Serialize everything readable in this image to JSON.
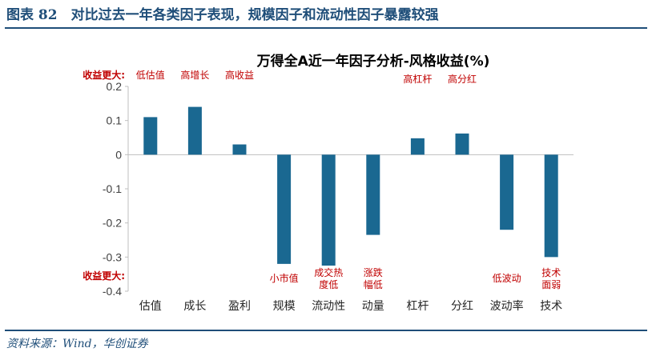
{
  "figure_title": "图表 82　对比过去一年各类因子表现，规模因子和流动性因子暴露较强",
  "source": "资料来源：Wind，华创证券",
  "colors": {
    "bar": "#1a6891",
    "annotation": "#c00000",
    "header": "#1f4e79",
    "axis": "#bfbfbf"
  },
  "chart_data": {
    "type": "bar",
    "title": "万得全A近一年因子分析-风格收益(%)",
    "categories": [
      "估值",
      "成长",
      "盈利",
      "规模",
      "流动性",
      "动量",
      "杠杆",
      "分红",
      "波动率",
      "技术"
    ],
    "values": [
      0.11,
      0.14,
      0.03,
      -0.32,
      -0.325,
      -0.235,
      0.048,
      0.062,
      -0.22,
      -0.3
    ],
    "ylim": [
      -0.4,
      0.2
    ],
    "yticks": [
      "0.2",
      "0.1",
      "0",
      "-0.1",
      "-0.2",
      "-0.3",
      "-0.4"
    ],
    "grid": false,
    "annotations": {
      "top_label": "收益更大:",
      "bottom_label": "收益更大:",
      "top": [
        {
          "index": 0,
          "lines": [
            "低估值"
          ]
        },
        {
          "index": 1,
          "lines": [
            "高增长"
          ]
        },
        {
          "index": 2,
          "lines": [
            "高收益"
          ]
        },
        {
          "index": 6,
          "lines": [
            "高杠杆"
          ]
        },
        {
          "index": 7,
          "lines": [
            "高分红"
          ]
        }
      ],
      "bottom": [
        {
          "index": 3,
          "lines": [
            "小市值"
          ]
        },
        {
          "index": 4,
          "lines": [
            "成交热",
            "度低"
          ]
        },
        {
          "index": 5,
          "lines": [
            "涨跌",
            "幅低"
          ]
        },
        {
          "index": 8,
          "lines": [
            "低波动"
          ]
        },
        {
          "index": 9,
          "lines": [
            "技术",
            "面弱"
          ]
        }
      ]
    }
  }
}
